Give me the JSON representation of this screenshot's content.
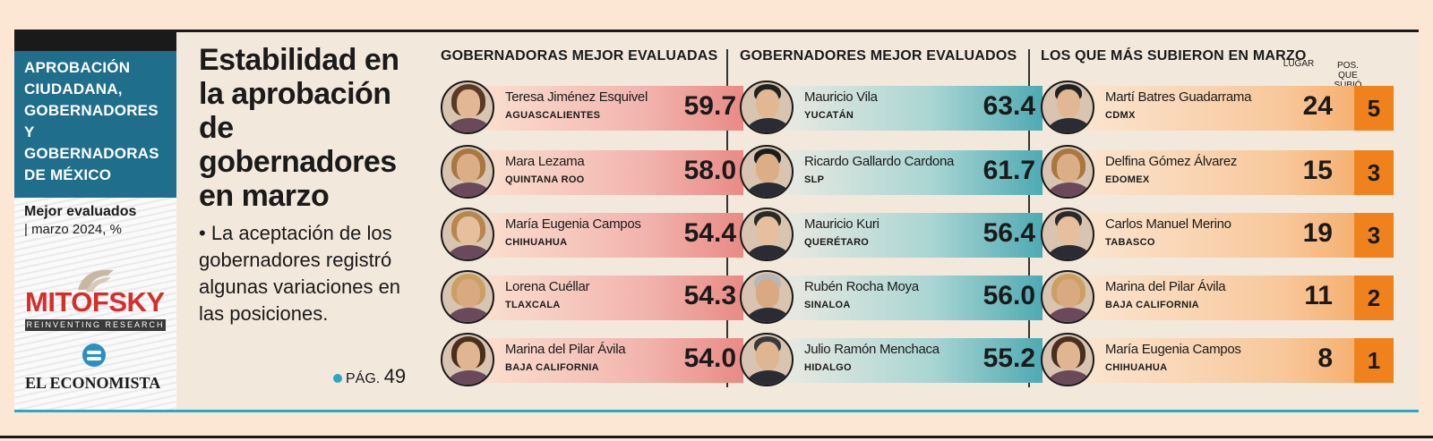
{
  "sidebar": {
    "title": "APROBACIÓN CIUDADANA, GOBERNADORES Y GOBERNADORAS DE MÉXICO",
    "subtitle": "Mejor evaluados",
    "date": "| marzo 2024, %",
    "brand": "MITOFSKY",
    "brand_tagline": "REINVENTING RESEARCH",
    "publisher": "EL ECONOMISTA"
  },
  "headline": {
    "title": "Estabilidad en la aprobación de gobernadores en marzo",
    "body": "• La aceptación de los gobernadores registró algunas variaciones en las posiciones.",
    "page_ref_label": "PÁG.",
    "page_ref_num": "49"
  },
  "colors": {
    "red": "#e98a86",
    "teal": "#4eaab3",
    "orange": "#f0821e",
    "blue": "#1e6e8c"
  },
  "sections": {
    "women": {
      "title": "GOBERNADORAS MEJOR EVALUADAS",
      "rows": [
        {
          "name": "Teresa Jiménez Esquivel",
          "state": "AGUASCALIENTES",
          "value": "59.7"
        },
        {
          "name": "Mara Lezama",
          "state": "QUINTANA ROO",
          "value": "58.0"
        },
        {
          "name": "María Eugenia Campos",
          "state": "CHIHUAHUA",
          "value": "54.4"
        },
        {
          "name": "Lorena Cuéllar",
          "state": "TLAXCALA",
          "value": "54.3"
        },
        {
          "name": "Marina del Pilar Ávila",
          "state": "BAJA CALIFORNIA",
          "value": "54.0"
        }
      ]
    },
    "men": {
      "title": "GOBERNADORES MEJOR EVALUADOS",
      "rows": [
        {
          "name": "Mauricio Vila",
          "state": "YUCATÁN",
          "value": "63.4"
        },
        {
          "name": "Ricardo Gallardo Cardona",
          "state": "SLP",
          "value": "61.7"
        },
        {
          "name": "Mauricio Kuri",
          "state": "QUERÉTARO",
          "value": "56.4"
        },
        {
          "name": "Rubén Rocha Moya",
          "state": "SINALOA",
          "value": "56.0"
        },
        {
          "name": "Julio Ramón Menchaca",
          "state": "HIDALGO",
          "value": "55.2"
        }
      ]
    },
    "risers": {
      "title": "LOS QUE MÁS SUBIERON EN MARZO",
      "col_place": "LUGAR",
      "col_rise": "POS. QUE SUBIÓ",
      "rows": [
        {
          "name": "Martí Batres Guadarrama",
          "state": "CDMX",
          "place": "24",
          "rise": "5"
        },
        {
          "name": "Delfina Gómez Álvarez",
          "state": "EDOMEX",
          "place": "15",
          "rise": "3"
        },
        {
          "name": "Carlos Manuel Merino",
          "state": "TABASCO",
          "place": "19",
          "rise": "3"
        },
        {
          "name": "Marina del Pilar Ávila",
          "state": "BAJA CALIFORNIA",
          "place": "11",
          "rise": "2"
        },
        {
          "name": "María Eugenia Campos",
          "state": "CHIHUAHUA",
          "place": "8",
          "rise": "1"
        }
      ]
    }
  }
}
